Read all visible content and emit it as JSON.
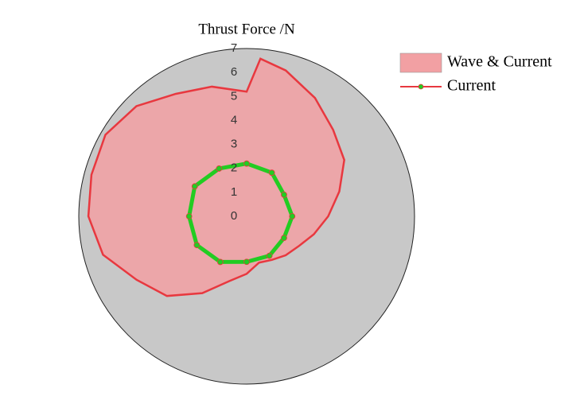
{
  "chart_data": {
    "type": "polar",
    "title": "Thrust Force /N",
    "rlim": [
      0,
      7
    ],
    "rticks": [
      0,
      1,
      2,
      3,
      4,
      5,
      6,
      7
    ],
    "series": [
      {
        "name": "Wave & Current",
        "type": "area",
        "color": "#e8383f",
        "fill": "#f2a0a3",
        "theta": [
          0,
          15,
          30,
          45,
          60,
          75,
          85,
          90,
          105,
          120,
          135,
          150,
          165,
          180,
          195,
          210,
          225,
          240,
          255,
          270,
          285,
          300,
          315,
          330,
          345
        ],
        "values": [
          3.4,
          4.0,
          4.7,
          5.1,
          5.7,
          6.3,
          6.6,
          5.2,
          5.6,
          5.9,
          6.5,
          6.8,
          6.7,
          6.6,
          6.2,
          5.3,
          4.7,
          3.7,
          2.8,
          2.4,
          2.0,
          2.1,
          2.3,
          2.5,
          2.9
        ]
      },
      {
        "name": "Current",
        "type": "line",
        "color": "#e8383f",
        "marker_color": "#22cc22",
        "theta": [
          0,
          30,
          60,
          90,
          120,
          150,
          180,
          210,
          240,
          270,
          300,
          330
        ],
        "values": [
          1.9,
          1.8,
          2.1,
          2.2,
          2.3,
          2.5,
          2.4,
          2.4,
          2.2,
          1.9,
          1.9,
          1.8
        ]
      }
    ]
  }
}
